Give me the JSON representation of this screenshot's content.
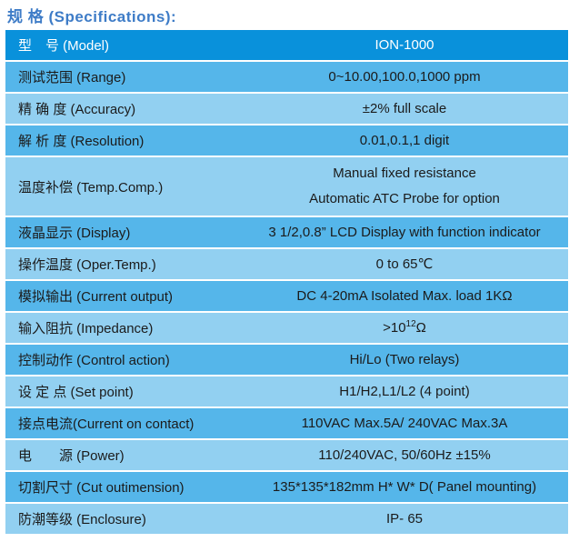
{
  "page_title": "规 格 (Specifications):",
  "accent_colors": {
    "title_blue": "#3e7cc7",
    "header_row_blue": "#0991db",
    "medium_row_blue": "#55b6ea",
    "light_row_blue": "#92d0f1"
  },
  "table": {
    "rows": [
      {
        "label": "型　号 (Model)",
        "value": "ION-1000"
      },
      {
        "label": "测试范围 (Range)",
        "value": "0~10.00,100.0,1000 ppm"
      },
      {
        "label": "精 确 度 (Accuracy)",
        "value": "±2% full scale"
      },
      {
        "label": "解 析 度 (Resolution)",
        "value": "0.01,0.1,1 digit"
      },
      {
        "label": "温度补偿 (Temp.Comp.)",
        "value": [
          "Manual fixed resistance",
          "Automatic ATC Probe for option"
        ]
      },
      {
        "label": "液晶显示 (Display)",
        "value": "3 1/2,0.8”  LCD Display with function indicator"
      },
      {
        "label": "操作温度 (Oper.Temp.)",
        "value": "0 to 65℃"
      },
      {
        "label": "模拟输出 (Current output)",
        "value": "DC 4-20mA Isolated Max. load 1KΩ"
      },
      {
        "label": "输入阻抗 (Impedance)",
        "value": {
          "prefix": ">10",
          "sup": "12",
          "suffix": "Ω"
        }
      },
      {
        "label": "控制动作 (Control action)",
        "value": "Hi/Lo (Two relays)"
      },
      {
        "label": "设 定 点  (Set point)",
        "value": "H1/H2,L1/L2 (4 point)"
      },
      {
        "label": "接点电流(Current on contact)",
        "value": "110VAC Max.5A/ 240VAC Max.3A"
      },
      {
        "label": "电　　源 (Power)",
        "value": "110/240VAC, 50/60Hz ±15%"
      },
      {
        "label": "切割尺寸 (Cut outimension)",
        "value": "135*135*182mm H* W* D( Panel mounting)"
      },
      {
        "label": "防潮等级 (Enclosure)",
        "value": "IP- 65"
      }
    ]
  }
}
